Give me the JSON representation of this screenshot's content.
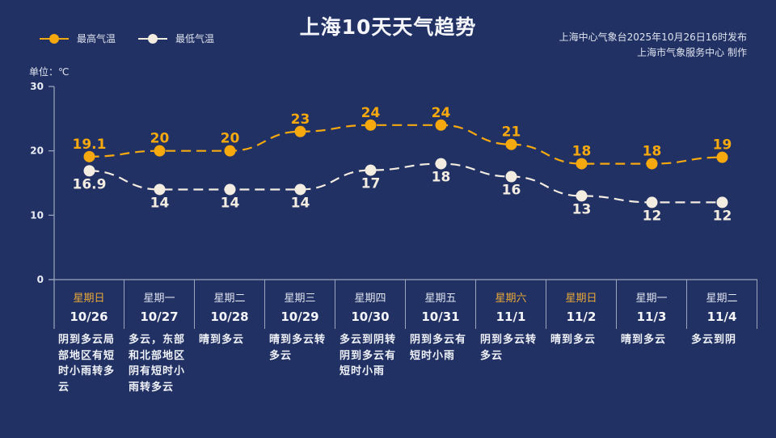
{
  "header": {
    "title": "上海10天天气趋势",
    "source_line1": "上海中心气象台2025年10月26日16时发布",
    "source_line2": "上海市气象服务中心 制作"
  },
  "legend": [
    {
      "label": "最高气温",
      "color": "#f5a90f"
    },
    {
      "label": "最低气温",
      "color": "#f3ece1"
    }
  ],
  "unit_label": "单位：℃",
  "colors": {
    "background": "#223163",
    "high": "#f5a90f",
    "low": "#f3ece1",
    "weekend": "#e9a93a",
    "axis": "#9aa6bd"
  },
  "days": [
    {
      "weekday": "星期日",
      "date": "10/26",
      "weekend": true,
      "weather": "阴到多云局部地区有短时小雨转多云"
    },
    {
      "weekday": "星期一",
      "date": "10/27",
      "weekend": false,
      "weather": "多云，东部和北部地区阴有短时小雨转多云"
    },
    {
      "weekday": "星期二",
      "date": "10/28",
      "weekend": false,
      "weather": "晴到多云"
    },
    {
      "weekday": "星期三",
      "date": "10/29",
      "weekend": false,
      "weather": "晴到多云转多云"
    },
    {
      "weekday": "星期四",
      "date": "10/30",
      "weekend": false,
      "weather": "多云到阴转阴到多云有短时小雨"
    },
    {
      "weekday": "星期五",
      "date": "10/31",
      "weekend": false,
      "weather": "阴到多云有短时小雨"
    },
    {
      "weekday": "星期六",
      "date": "11/1",
      "weekend": true,
      "weather": "阴到多云转多云"
    },
    {
      "weekday": "星期日",
      "date": "11/2",
      "weekend": true,
      "weather": "晴到多云"
    },
    {
      "weekday": "星期一",
      "date": "11/3",
      "weekend": false,
      "weather": "晴到多云"
    },
    {
      "weekday": "星期二",
      "date": "11/4",
      "weekend": false,
      "weather": "多云到阴"
    }
  ],
  "chart_data": {
    "type": "line",
    "title": "上海10天天气趋势",
    "subtitle": "上海中心气象台2025年10月26日16时发布 / 上海市气象服务中心 制作",
    "xlabel": "",
    "ylabel": "单位：℃",
    "categories": [
      "10/26",
      "10/27",
      "10/28",
      "10/29",
      "10/30",
      "10/31",
      "11/1",
      "11/2",
      "11/3",
      "11/4"
    ],
    "x_weekdays": [
      "星期日",
      "星期一",
      "星期二",
      "星期三",
      "星期四",
      "星期五",
      "星期六",
      "星期日",
      "星期一",
      "星期二"
    ],
    "series": [
      {
        "name": "最高气温",
        "color": "#f5a90f",
        "style": "dashed",
        "values": [
          19.1,
          20,
          20,
          23,
          24,
          24,
          21,
          18,
          18,
          19
        ]
      },
      {
        "name": "最低气温",
        "color": "#f3ece1",
        "style": "dashed",
        "values": [
          16.9,
          14,
          14,
          14,
          17,
          18,
          16,
          13,
          12,
          12
        ]
      }
    ],
    "ylim": [
      0,
      30
    ],
    "yticks": [
      0,
      10,
      20,
      30
    ],
    "grid": false,
    "legend_position": "top-left",
    "data_labels": true
  }
}
